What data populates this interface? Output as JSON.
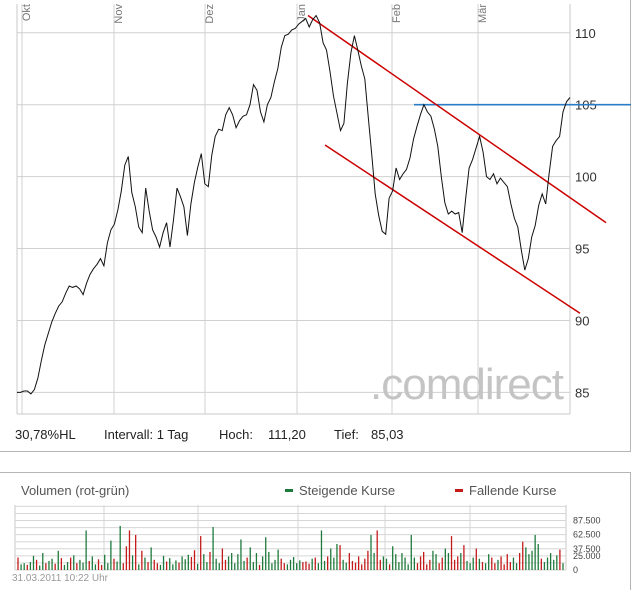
{
  "chart_data": [
    {
      "type": "line",
      "x_labels": [
        "Okt",
        "Nov",
        "Dez",
        "Jan",
        "Feb",
        "Mär"
      ],
      "y_ticks": [
        85,
        90,
        95,
        100,
        105,
        110
      ],
      "ylim": [
        83.5,
        112
      ],
      "grid": true,
      "watermark": ".comdirect",
      "series": [
        {
          "values": [
            85.0,
            85.0,
            85.1,
            85.1,
            84.9,
            85.2,
            86.0,
            87.2,
            88.3,
            89.1,
            89.9,
            90.5,
            91.0,
            91.3,
            91.9,
            92.4,
            92.3,
            92.4,
            92.2,
            91.8,
            92.6,
            93.2,
            93.6,
            93.9,
            94.3,
            93.8,
            95.4,
            96.3,
            96.7,
            97.7,
            99.0,
            100.8,
            101.4,
            98.9,
            97.9,
            96.5,
            96.1,
            99.2,
            97.6,
            96.3,
            95.8,
            95.1,
            96.1,
            96.8,
            95.1,
            97.0,
            99.2,
            98.6,
            97.9,
            95.9,
            98.1,
            99.6,
            100.7,
            101.6,
            99.5,
            99.3,
            101.5,
            102.8,
            103.3,
            103.2,
            104.3,
            104.8,
            104.3,
            103.4,
            103.9,
            104.2,
            104.3,
            105.0,
            106.4,
            106.0,
            104.5,
            103.8,
            105.0,
            105.5,
            106.6,
            107.5,
            109.0,
            109.8,
            109.9,
            110.2,
            110.3,
            110.6,
            110.8,
            111.0,
            110.4,
            110.9,
            111.2,
            110.7,
            109.3,
            108.8,
            107.3,
            105.6,
            104.4,
            103.2,
            103.7,
            106.5,
            108.6,
            109.8,
            108.8,
            107.7,
            106.8,
            104.1,
            101.5,
            98.8,
            97.3,
            96.2,
            96.0,
            98.5,
            99.0,
            100.6,
            99.8,
            100.2,
            100.5,
            101.3,
            102.6,
            103.5,
            104.3,
            105.0,
            104.5,
            104.2,
            103.3,
            102.1,
            100.0,
            98.2,
            97.4,
            97.6,
            97.4,
            97.5,
            96.1,
            98.5,
            100.6,
            101.2,
            102.0,
            102.8,
            101.7,
            100.0,
            99.8,
            100.2,
            99.5,
            99.9,
            99.6,
            99.3,
            98.1,
            97.1,
            96.5,
            94.9,
            93.5,
            94.3,
            95.8,
            96.6,
            98.0,
            98.8,
            98.1,
            100.2,
            102.1,
            102.5,
            102.8,
            104.5,
            105.2,
            105.5
          ]
        }
      ],
      "channel": {
        "upper": {
          "start": {
            "x": "Jan",
            "y": 111.2
          },
          "end": {
            "x": "Ende",
            "y": 96.8
          }
        },
        "lower": {
          "start": {
            "x": "Jan",
            "y": 102.2
          },
          "end": {
            "x": "Ende",
            "y": 90.5
          }
        },
        "color": "#cc0000"
      },
      "resistance": {
        "y": 105.0,
        "from": "Feb",
        "color": "#2b7cc7"
      },
      "stats": {
        "performance": "30,78%HL",
        "interval": "Intervall: 1 Tag",
        "high_label": "Hoch:",
        "high_value": "111,20",
        "low_label": "Tief:",
        "low_value": "85,03"
      }
    },
    {
      "type": "bar",
      "title": "Volumen (rot-grün)",
      "legend": [
        {
          "label": "Steigende Kurse",
          "color": "#1e7a3c"
        },
        {
          "label": "Fallende Kurse",
          "color": "#c41a1a"
        }
      ],
      "y_ticks": [
        "0",
        "25.000",
        "37.500",
        "62.500",
        "87.500"
      ],
      "y_tick_values": [
        0,
        25000,
        37500,
        62500,
        87500
      ],
      "ylim": [
        0,
        115000
      ],
      "volumes": [
        22000,
        10000,
        12000,
        9000,
        14000,
        25000,
        18000,
        8000,
        30000,
        12000,
        16000,
        20000,
        11000,
        34000,
        21000,
        9000,
        14000,
        22000,
        26000,
        12000,
        18000,
        13000,
        70000,
        16000,
        24000,
        10000,
        19000,
        9000,
        27000,
        12000,
        52000,
        20000,
        15000,
        78000,
        12000,
        42000,
        70000,
        26000,
        62000,
        10000,
        34000,
        22000,
        14000,
        40000,
        18000,
        12000,
        9000,
        25000,
        15000,
        21000,
        10000,
        17000,
        13000,
        24000,
        19000,
        27000,
        23000,
        35000,
        11000,
        60000,
        28000,
        14000,
        32000,
        76000,
        20000,
        12000,
        38000,
        18000,
        24000,
        30000,
        12000,
        28000,
        54000,
        16000,
        22000,
        40000,
        14000,
        30000,
        9000,
        24000,
        58000,
        32000,
        12000,
        18000,
        36000,
        20000,
        12000,
        10000,
        18000,
        23000,
        12000,
        17000,
        14000,
        15000,
        11000,
        20000,
        22000,
        12000,
        70000,
        16000,
        24000,
        38000,
        22000,
        46000,
        44000,
        18000,
        13000,
        30000,
        16000,
        13000,
        24000,
        10000,
        20000,
        34000,
        62000,
        30000,
        70000,
        18000,
        24000,
        20000,
        10000,
        42000,
        28000,
        14000,
        30000,
        22000,
        10000,
        62000,
        22000,
        12000,
        24000,
        32000,
        10000,
        18000,
        34000,
        28000,
        12000,
        22000,
        38000,
        30000,
        60000,
        18000,
        24000,
        30000,
        44000,
        16000,
        12000,
        22000,
        38000,
        20000,
        14000,
        12000,
        28000,
        22000,
        12000,
        18000,
        24000,
        10000,
        28000,
        14000,
        22000,
        12000,
        30000,
        50000,
        40000,
        28000,
        34000,
        62000,
        46000,
        20000,
        14000,
        22000,
        30000,
        18000,
        26000,
        36000,
        12000
      ],
      "directions": [
        "d",
        "u",
        "u",
        "d",
        "u",
        "u",
        "d",
        "u",
        "u",
        "d",
        "u",
        "u",
        "d",
        "u",
        "d",
        "u",
        "u",
        "d",
        "u",
        "d",
        "u",
        "u",
        "u",
        "d",
        "u",
        "u",
        "d",
        "d",
        "u",
        "u",
        "u",
        "d",
        "u",
        "u",
        "d",
        "d",
        "d",
        "u",
        "d",
        "u",
        "d",
        "u",
        "d",
        "u",
        "d",
        "d",
        "u",
        "u",
        "d",
        "u",
        "u",
        "u",
        "d",
        "u",
        "u",
        "u",
        "d",
        "d",
        "u",
        "d",
        "u",
        "u",
        "d",
        "u",
        "u",
        "u",
        "d",
        "d",
        "u",
        "u",
        "u",
        "u",
        "u",
        "u",
        "d",
        "u",
        "u",
        "u",
        "d",
        "u",
        "u",
        "u",
        "u",
        "u",
        "u",
        "d",
        "d",
        "u",
        "u",
        "u",
        "u",
        "u",
        "d",
        "d",
        "d",
        "u",
        "d",
        "u",
        "u",
        "u",
        "d",
        "u",
        "u",
        "u",
        "d",
        "u",
        "u",
        "d",
        "d",
        "d",
        "d",
        "d",
        "d",
        "d",
        "u",
        "u",
        "d",
        "d",
        "u",
        "u",
        "d",
        "u",
        "u",
        "u",
        "u",
        "u",
        "u",
        "u",
        "u",
        "d",
        "d",
        "d",
        "d",
        "d",
        "u",
        "u",
        "d",
        "d",
        "u",
        "u",
        "d",
        "d",
        "d",
        "u",
        "d",
        "u",
        "u",
        "u",
        "d",
        "u",
        "d",
        "u",
        "u",
        "d",
        "d",
        "u",
        "d",
        "d",
        "d",
        "d",
        "u",
        "u",
        "d",
        "d",
        "u",
        "u",
        "u",
        "u",
        "u",
        "d",
        "u",
        "u",
        "u",
        "u",
        "u",
        "d",
        "u",
        "u"
      ],
      "timestamp": "31.03.2011 10:22 Uhr"
    }
  ]
}
